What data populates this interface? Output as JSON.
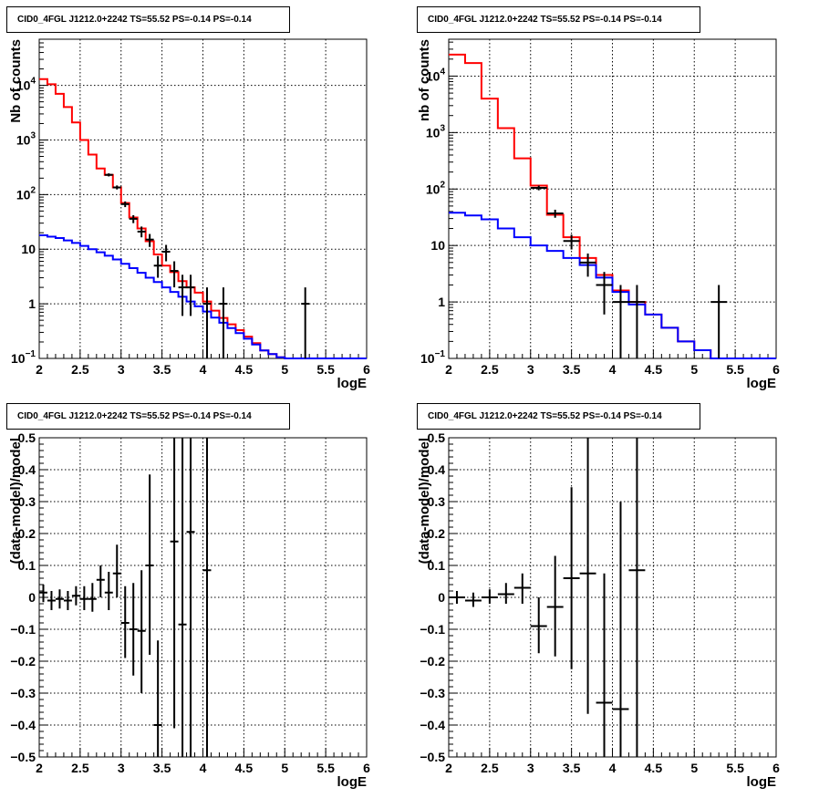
{
  "chart_data": [
    {
      "type": "line",
      "panel": "top-left",
      "title": "CID0_4FGL J1212.0+2242 TS=55.52 PS=-0.14 PS=-0.14",
      "xlabel": "logE",
      "ylabel": "Nb of counts",
      "xlim": [
        2,
        6
      ],
      "ylim": [
        0.1,
        70000
      ],
      "yscale": "log",
      "grid": true,
      "xticks": [
        "2",
        "2.5",
        "3",
        "3.5",
        "4",
        "4.5",
        "5",
        "5.5",
        "6"
      ],
      "yticks": [
        {
          "v": 0.1,
          "l": "10",
          "e": "−1"
        },
        {
          "v": 1,
          "l": "1",
          "e": ""
        },
        {
          "v": 10,
          "l": "10",
          "e": ""
        },
        {
          "v": 100,
          "l": "10",
          "e": "2"
        },
        {
          "v": 1000,
          "l": "10",
          "e": "3"
        },
        {
          "v": 10000,
          "l": "10",
          "e": "4"
        }
      ],
      "bin_edges": [
        2.0,
        2.1,
        2.2,
        2.3,
        2.4,
        2.5,
        2.6,
        2.7,
        2.8,
        2.9,
        3.0,
        3.1,
        3.2,
        3.3,
        3.4,
        3.5,
        3.6,
        3.7,
        3.8,
        3.9,
        4.0,
        4.1,
        4.2,
        4.3,
        4.4,
        4.5,
        4.6,
        4.7,
        4.8,
        4.9,
        5.0,
        5.1,
        5.2,
        5.3,
        5.4,
        5.5,
        5.6,
        5.7,
        5.8,
        5.9,
        6.0
      ],
      "series": [
        {
          "color": "#ff0000",
          "values": [
            13000,
            10500,
            7000,
            4000,
            2100,
            1000,
            540,
            300,
            230,
            135,
            70,
            38,
            24,
            14,
            8,
            5,
            3.8,
            2.6,
            2.0,
            1.6,
            1.1,
            0.75,
            0.55,
            0.42,
            0.33,
            0.25,
            0.19,
            0.14,
            0.12,
            0.105,
            0.1,
            0.1,
            0.1,
            0.1,
            0.1,
            0.1,
            0.1,
            0.1,
            0.1,
            0.1
          ]
        },
        {
          "color": "#0000ff",
          "values": [
            18,
            17,
            16,
            14.5,
            13,
            11.5,
            10,
            8.8,
            7.6,
            6.5,
            5.4,
            4.5,
            3.7,
            3.0,
            2.5,
            2.0,
            1.65,
            1.35,
            1.1,
            0.9,
            0.72,
            0.56,
            0.45,
            0.36,
            0.29,
            0.23,
            0.18,
            0.14,
            0.12,
            0.105,
            0.1,
            0.1,
            0.1,
            0.1,
            0.1,
            0.1,
            0.1,
            0.1,
            0.1,
            0.1
          ]
        }
      ],
      "points": [
        {
          "x": 2.85,
          "y": 230,
          "lo": 215,
          "hi": 245,
          "xerr": 0.05
        },
        {
          "x": 2.95,
          "y": 135,
          "lo": 124,
          "hi": 147,
          "xerr": 0.05
        },
        {
          "x": 3.05,
          "y": 67,
          "lo": 59,
          "hi": 75,
          "xerr": 0.05
        },
        {
          "x": 3.15,
          "y": 36,
          "lo": 30,
          "hi": 42,
          "xerr": 0.05
        },
        {
          "x": 3.25,
          "y": 21,
          "lo": 16.5,
          "hi": 26,
          "xerr": 0.05
        },
        {
          "x": 3.35,
          "y": 15,
          "lo": 11,
          "hi": 19,
          "xerr": 0.05
        },
        {
          "x": 3.45,
          "y": 5,
          "lo": 3,
          "hi": 7.5,
          "xerr": 0.05
        },
        {
          "x": 3.55,
          "y": 9,
          "lo": 6,
          "hi": 12,
          "xerr": 0.05
        },
        {
          "x": 3.65,
          "y": 4,
          "lo": 2,
          "hi": 6,
          "xerr": 0.05
        },
        {
          "x": 3.75,
          "y": 2,
          "lo": 0.6,
          "hi": 3.4,
          "xerr": 0.05
        },
        {
          "x": 3.85,
          "y": 2,
          "lo": 0.6,
          "hi": 3.4,
          "xerr": 0.05
        },
        {
          "x": 4.05,
          "y": 1,
          "lo": 0.1,
          "hi": 2,
          "xerr": 0.05
        },
        {
          "x": 4.25,
          "y": 1,
          "lo": 0.1,
          "hi": 2,
          "xerr": 0.05
        },
        {
          "x": 5.25,
          "y": 1,
          "lo": 0.1,
          "hi": 2,
          "xerr": 0.05
        }
      ]
    },
    {
      "type": "line",
      "panel": "top-right",
      "title": "CID0_4FGL J1212.0+2242 TS=55.52 PS=-0.14 PS=-0.14",
      "xlabel": "logE",
      "ylabel": "nb of counts",
      "xlim": [
        2,
        6
      ],
      "ylim": [
        0.1,
        45000
      ],
      "yscale": "log",
      "grid": true,
      "xticks": [
        "2",
        "2.5",
        "3",
        "3.5",
        "4",
        "4.5",
        "5",
        "5.5",
        "6"
      ],
      "yticks": [
        {
          "v": 0.1,
          "l": "10",
          "e": "−1"
        },
        {
          "v": 1,
          "l": "1",
          "e": ""
        },
        {
          "v": 10,
          "l": "10",
          "e": ""
        },
        {
          "v": 100,
          "l": "10",
          "e": "2"
        },
        {
          "v": 1000,
          "l": "10",
          "e": "3"
        },
        {
          "v": 10000,
          "l": "10",
          "e": "4"
        }
      ],
      "bin_edges": [
        2.0,
        2.2,
        2.4,
        2.6,
        2.8,
        3.0,
        3.2,
        3.4,
        3.6,
        3.8,
        4.0,
        4.2,
        4.4,
        4.6,
        4.8,
        5.0,
        5.2,
        5.4,
        5.6,
        5.8,
        6.0
      ],
      "series": [
        {
          "color": "#ff0000",
          "values": [
            24000,
            17000,
            4000,
            1200,
            350,
            115,
            35,
            14,
            6,
            3,
            1.6,
            1.0,
            0.6,
            0.35,
            0.2,
            0.14,
            0.1,
            0.1,
            0.1,
            0.1
          ]
        },
        {
          "color": "#0000ff",
          "values": [
            38,
            34,
            29,
            20,
            14,
            10,
            8,
            6,
            4.5,
            2.7,
            1.5,
            0.9,
            0.6,
            0.35,
            0.2,
            0.14,
            0.1,
            0.1,
            0.1,
            0.1
          ]
        }
      ],
      "points": [
        {
          "x": 3.1,
          "y": 105,
          "lo": 95,
          "hi": 115,
          "xerr": 0.1
        },
        {
          "x": 3.3,
          "y": 37,
          "lo": 31,
          "hi": 43,
          "xerr": 0.1
        },
        {
          "x": 3.5,
          "y": 12,
          "lo": 8.5,
          "hi": 15.5,
          "xerr": 0.1
        },
        {
          "x": 3.7,
          "y": 5,
          "lo": 2.8,
          "hi": 7.2,
          "xerr": 0.1
        },
        {
          "x": 3.9,
          "y": 2,
          "lo": 0.6,
          "hi": 3.4,
          "xerr": 0.1
        },
        {
          "x": 4.1,
          "y": 1,
          "lo": 0.1,
          "hi": 2,
          "xerr": 0.1
        },
        {
          "x": 4.3,
          "y": 1,
          "lo": 0.1,
          "hi": 2,
          "xerr": 0.1
        },
        {
          "x": 5.3,
          "y": 1,
          "lo": 0.1,
          "hi": 2,
          "xerr": 0.1
        }
      ]
    },
    {
      "type": "scatter",
      "panel": "bottom-left",
      "title": "CID0_4FGL J1212.0+2242 TS=55.52 PS=-0.14 PS=-0.14",
      "xlabel": "logE",
      "ylabel": "(data-model)/model",
      "xlim": [
        2,
        6
      ],
      "ylim": [
        -0.5,
        0.5
      ],
      "yscale": "linear",
      "grid": true,
      "xticks": [
        "2",
        "2.5",
        "3",
        "3.5",
        "4",
        "4.5",
        "5",
        "5.5",
        "6"
      ],
      "yticks": [
        {
          "v": -0.5,
          "l": "−0.5",
          "e": ""
        },
        {
          "v": -0.4,
          "l": "−0.4",
          "e": ""
        },
        {
          "v": -0.3,
          "l": "−0.3",
          "e": ""
        },
        {
          "v": -0.2,
          "l": "−0.2",
          "e": ""
        },
        {
          "v": -0.1,
          "l": "−0.1",
          "e": ""
        },
        {
          "v": 0,
          "l": "0",
          "e": ""
        },
        {
          "v": 0.1,
          "l": "0.1",
          "e": ""
        },
        {
          "v": 0.2,
          "l": "0.2",
          "e": ""
        },
        {
          "v": 0.3,
          "l": "0.3",
          "e": ""
        },
        {
          "v": 0.4,
          "l": "0.4",
          "e": ""
        },
        {
          "v": 0.5,
          "l": "0.5",
          "e": ""
        }
      ],
      "points": [
        {
          "x": 2.05,
          "y": 0.015,
          "lo": -0.015,
          "hi": 0.04,
          "xerr": 0.05
        },
        {
          "x": 2.15,
          "y": -0.01,
          "lo": -0.04,
          "hi": 0.02,
          "xerr": 0.05
        },
        {
          "x": 2.25,
          "y": -0.005,
          "lo": -0.035,
          "hi": 0.025,
          "xerr": 0.05
        },
        {
          "x": 2.35,
          "y": -0.01,
          "lo": -0.04,
          "hi": 0.02,
          "xerr": 0.05
        },
        {
          "x": 2.45,
          "y": 0.005,
          "lo": -0.025,
          "hi": 0.035,
          "xerr": 0.05
        },
        {
          "x": 2.55,
          "y": -0.005,
          "lo": -0.04,
          "hi": 0.035,
          "xerr": 0.05
        },
        {
          "x": 2.65,
          "y": -0.005,
          "lo": -0.045,
          "hi": 0.045,
          "xerr": 0.05
        },
        {
          "x": 2.75,
          "y": 0.055,
          "lo": 0.0,
          "hi": 0.1,
          "xerr": 0.05
        },
        {
          "x": 2.85,
          "y": 0.015,
          "lo": -0.04,
          "hi": 0.08,
          "xerr": 0.05
        },
        {
          "x": 2.95,
          "y": 0.075,
          "lo": 0.0,
          "hi": 0.165,
          "xerr": 0.05
        },
        {
          "x": 3.05,
          "y": -0.08,
          "lo": -0.19,
          "hi": 0.035,
          "xerr": 0.05
        },
        {
          "x": 3.15,
          "y": -0.1,
          "lo": -0.245,
          "hi": 0.045,
          "xerr": 0.05
        },
        {
          "x": 3.25,
          "y": -0.105,
          "lo": -0.3,
          "hi": 0.085,
          "xerr": 0.05
        },
        {
          "x": 3.35,
          "y": 0.1,
          "lo": -0.18,
          "hi": 0.385,
          "xerr": 0.05
        },
        {
          "x": 3.45,
          "y": -0.4,
          "lo": -0.5,
          "hi": -0.135,
          "xerr": 0.05
        },
        {
          "x": 3.65,
          "y": 0.175,
          "lo": -0.41,
          "hi": 0.5,
          "xerr": 0.05
        },
        {
          "x": 3.75,
          "y": -0.085,
          "lo": -0.5,
          "hi": 0.5,
          "xerr": 0.05
        },
        {
          "x": 3.85,
          "y": 0.205,
          "lo": -0.5,
          "hi": 0.5,
          "xerr": 0.05
        },
        {
          "x": 4.05,
          "y": 0.085,
          "lo": -0.5,
          "hi": 0.5,
          "xerr": 0.05
        }
      ]
    },
    {
      "type": "scatter",
      "panel": "bottom-right",
      "title": "CID0_4FGL J1212.0+2242 TS=55.52 PS=-0.14 PS=-0.14",
      "xlabel": "logE",
      "ylabel": "(data-model)/model",
      "xlim": [
        2,
        6
      ],
      "ylim": [
        -0.5,
        0.5
      ],
      "yscale": "linear",
      "grid": true,
      "xticks": [
        "2",
        "2.5",
        "3",
        "3.5",
        "4",
        "4.5",
        "5",
        "5.5",
        "6"
      ],
      "yticks": [
        {
          "v": -0.5,
          "l": "−0.5",
          "e": ""
        },
        {
          "v": -0.4,
          "l": "−0.4",
          "e": ""
        },
        {
          "v": -0.3,
          "l": "−0.3",
          "e": ""
        },
        {
          "v": -0.2,
          "l": "−0.2",
          "e": ""
        },
        {
          "v": -0.1,
          "l": "−0.1",
          "e": ""
        },
        {
          "v": 0,
          "l": "0",
          "e": ""
        },
        {
          "v": 0.1,
          "l": "0.1",
          "e": ""
        },
        {
          "v": 0.2,
          "l": "0.2",
          "e": ""
        },
        {
          "v": 0.3,
          "l": "0.3",
          "e": ""
        },
        {
          "v": 0.4,
          "l": "0.4",
          "e": ""
        },
        {
          "v": 0.5,
          "l": "0.5",
          "e": ""
        }
      ],
      "points": [
        {
          "x": 2.1,
          "y": 0.0,
          "lo": -0.02,
          "hi": 0.02,
          "xerr": 0.1
        },
        {
          "x": 2.3,
          "y": -0.01,
          "lo": -0.03,
          "hi": 0.015,
          "xerr": 0.1
        },
        {
          "x": 2.5,
          "y": 0.0,
          "lo": -0.02,
          "hi": 0.025,
          "xerr": 0.1
        },
        {
          "x": 2.7,
          "y": 0.01,
          "lo": -0.02,
          "hi": 0.045,
          "xerr": 0.1
        },
        {
          "x": 2.9,
          "y": 0.03,
          "lo": -0.02,
          "hi": 0.075,
          "xerr": 0.1
        },
        {
          "x": 3.1,
          "y": -0.09,
          "lo": -0.175,
          "hi": 0.0,
          "xerr": 0.1
        },
        {
          "x": 3.3,
          "y": -0.03,
          "lo": -0.185,
          "hi": 0.13,
          "xerr": 0.1
        },
        {
          "x": 3.5,
          "y": 0.06,
          "lo": -0.225,
          "hi": 0.345,
          "xerr": 0.1
        },
        {
          "x": 3.7,
          "y": 0.075,
          "lo": -0.365,
          "hi": 0.5,
          "xerr": 0.1
        },
        {
          "x": 3.9,
          "y": -0.33,
          "lo": -0.5,
          "hi": 0.075,
          "xerr": 0.1
        },
        {
          "x": 4.1,
          "y": -0.35,
          "lo": -0.5,
          "hi": 0.3,
          "xerr": 0.1
        },
        {
          "x": 4.3,
          "y": 0.085,
          "lo": -0.5,
          "hi": 0.5,
          "xerr": 0.1
        }
      ]
    }
  ]
}
